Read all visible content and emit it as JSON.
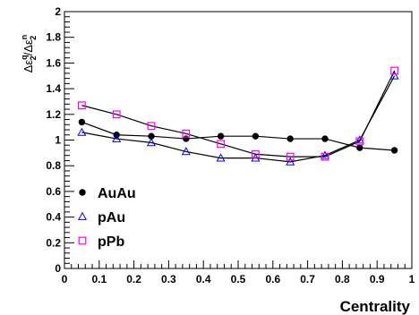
{
  "chart_data": {
    "type": "line",
    "xlabel": "Centrality",
    "ylabel_parts": [
      "Δε",
      "q",
      "2",
      "/Δε",
      "n",
      "2"
    ],
    "xlim": [
      0,
      1
    ],
    "ylim": [
      0,
      2
    ],
    "x_ticks": [
      "0",
      "0.1",
      "0.2",
      "0.3",
      "0.4",
      "0.5",
      "0.6",
      "0.7",
      "0.8",
      "0.9",
      "1"
    ],
    "y_ticks": [
      "0",
      "0.2",
      "0.4",
      "0.6",
      "0.8",
      "1",
      "1.2",
      "1.4",
      "1.6",
      "1.8",
      "2"
    ],
    "legend_position": "lower-left",
    "grid": false,
    "series": [
      {
        "name": "AuAu",
        "marker": "filled-circle",
        "color": "#000000",
        "x": [
          0.05,
          0.15,
          0.25,
          0.35,
          0.45,
          0.55,
          0.65,
          0.75,
          0.85,
          0.95
        ],
        "values": [
          1.14,
          1.04,
          1.03,
          1.01,
          1.03,
          1.03,
          1.01,
          1.01,
          0.94,
          0.92
        ]
      },
      {
        "name": "pAu",
        "marker": "open-triangle",
        "color": "#0000ff",
        "x": [
          0.05,
          0.15,
          0.25,
          0.35,
          0.45,
          0.55,
          0.65,
          0.75,
          0.85,
          0.95
        ],
        "values": [
          1.06,
          1.01,
          0.98,
          0.91,
          0.86,
          0.86,
          0.83,
          0.88,
          1.0,
          1.5
        ]
      },
      {
        "name": "pPb",
        "marker": "open-square",
        "color": "#ff00ff",
        "x": [
          0.05,
          0.15,
          0.25,
          0.35,
          0.45,
          0.55,
          0.65,
          0.75,
          0.85,
          0.95
        ],
        "values": [
          1.27,
          1.2,
          1.11,
          1.05,
          0.97,
          0.89,
          0.87,
          0.87,
          0.99,
          1.54
        ]
      }
    ]
  }
}
